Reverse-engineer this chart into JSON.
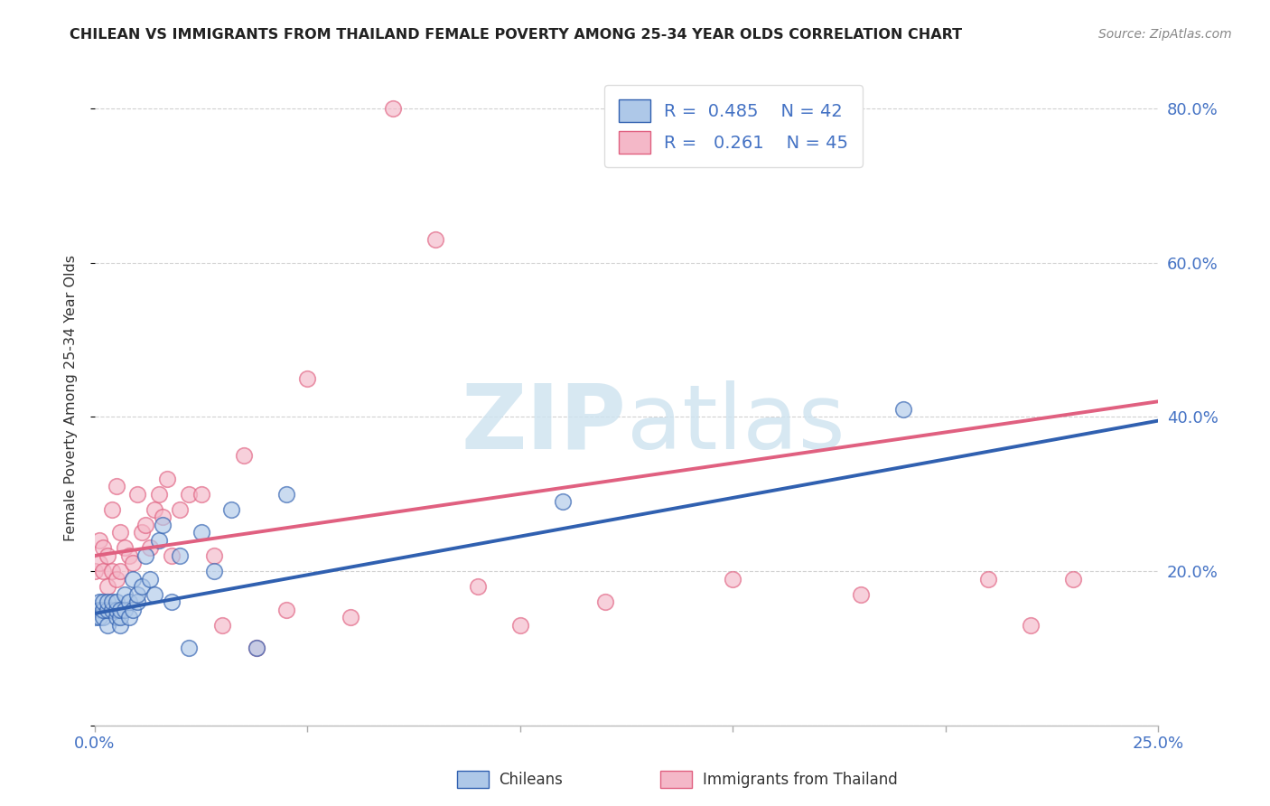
{
  "title": "CHILEAN VS IMMIGRANTS FROM THAILAND FEMALE POVERTY AMONG 25-34 YEAR OLDS CORRELATION CHART",
  "source": "Source: ZipAtlas.com",
  "ylabel": "Female Poverty Among 25-34 Year Olds",
  "xlim": [
    0,
    0.25
  ],
  "ylim": [
    0,
    0.85
  ],
  "legend_labels": [
    "Chileans",
    "Immigrants from Thailand"
  ],
  "legend_R": [
    "0.485",
    "0.261"
  ],
  "legend_N": [
    "42",
    "45"
  ],
  "blue_scatter_color": "#aec8e8",
  "pink_scatter_color": "#f4b8c8",
  "blue_line_color": "#3060b0",
  "pink_line_color": "#e06080",
  "title_color": "#222222",
  "axis_label_color": "#333333",
  "tick_label_color": "#4472C4",
  "watermark_color": "#d0e4f0",
  "background_color": "#ffffff",
  "grid_color": "#cccccc",
  "chileans_x": [
    0.0,
    0.001,
    0.001,
    0.001,
    0.002,
    0.002,
    0.002,
    0.003,
    0.003,
    0.003,
    0.004,
    0.004,
    0.005,
    0.005,
    0.005,
    0.006,
    0.006,
    0.006,
    0.007,
    0.007,
    0.008,
    0.008,
    0.009,
    0.009,
    0.01,
    0.01,
    0.011,
    0.012,
    0.013,
    0.014,
    0.015,
    0.016,
    0.018,
    0.02,
    0.022,
    0.025,
    0.028,
    0.032,
    0.038,
    0.045,
    0.11,
    0.19
  ],
  "chileans_y": [
    0.14,
    0.16,
    0.15,
    0.14,
    0.14,
    0.15,
    0.16,
    0.13,
    0.15,
    0.16,
    0.15,
    0.16,
    0.14,
    0.15,
    0.16,
    0.13,
    0.14,
    0.15,
    0.15,
    0.17,
    0.14,
    0.16,
    0.15,
    0.19,
    0.16,
    0.17,
    0.18,
    0.22,
    0.19,
    0.17,
    0.24,
    0.26,
    0.16,
    0.22,
    0.1,
    0.25,
    0.2,
    0.28,
    0.1,
    0.3,
    0.29,
    0.41
  ],
  "thailand_x": [
    0.0,
    0.001,
    0.001,
    0.002,
    0.002,
    0.003,
    0.003,
    0.004,
    0.004,
    0.005,
    0.005,
    0.006,
    0.006,
    0.007,
    0.008,
    0.009,
    0.01,
    0.011,
    0.012,
    0.013,
    0.014,
    0.015,
    0.016,
    0.017,
    0.018,
    0.02,
    0.022,
    0.025,
    0.028,
    0.03,
    0.035,
    0.038,
    0.045,
    0.05,
    0.06,
    0.07,
    0.08,
    0.09,
    0.1,
    0.12,
    0.15,
    0.18,
    0.21,
    0.22,
    0.23
  ],
  "thailand_y": [
    0.2,
    0.21,
    0.24,
    0.2,
    0.23,
    0.18,
    0.22,
    0.2,
    0.28,
    0.19,
    0.31,
    0.2,
    0.25,
    0.23,
    0.22,
    0.21,
    0.3,
    0.25,
    0.26,
    0.23,
    0.28,
    0.3,
    0.27,
    0.32,
    0.22,
    0.28,
    0.3,
    0.3,
    0.22,
    0.13,
    0.35,
    0.1,
    0.15,
    0.45,
    0.14,
    0.8,
    0.63,
    0.18,
    0.13,
    0.16,
    0.19,
    0.17,
    0.19,
    0.13,
    0.19
  ],
  "blue_trend_x": [
    0.0,
    0.25
  ],
  "blue_trend_y": [
    0.145,
    0.395
  ],
  "pink_trend_x": [
    0.0,
    0.25
  ],
  "pink_trend_y": [
    0.22,
    0.42
  ]
}
